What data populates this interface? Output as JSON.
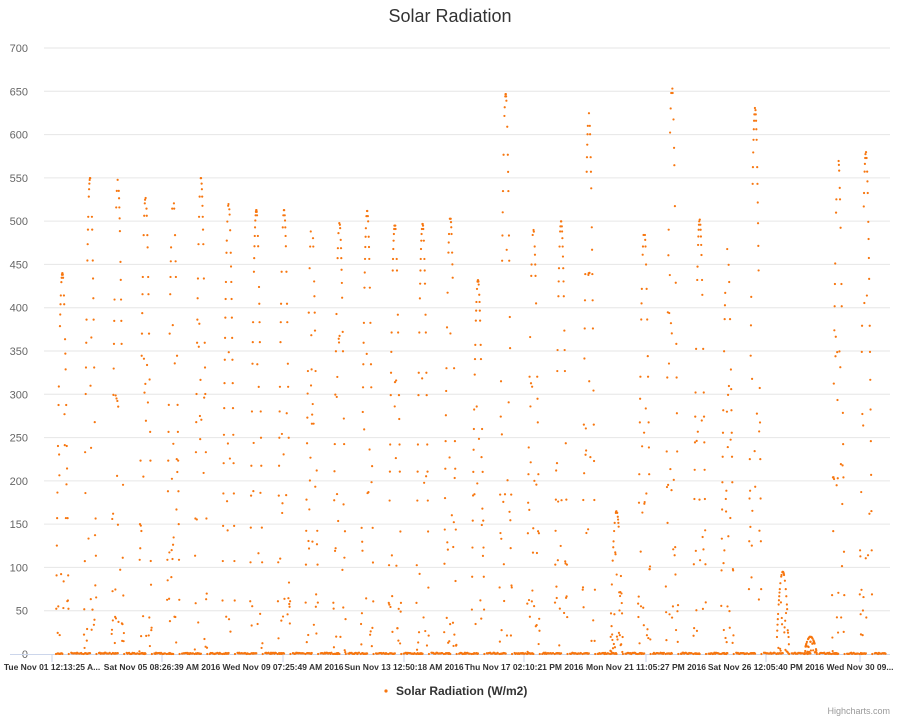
{
  "chart_data": {
    "type": "scatter",
    "title": "Solar Radiation",
    "ylim": [
      0,
      700
    ],
    "y_ticks": [
      0,
      50,
      100,
      150,
      200,
      250,
      300,
      350,
      400,
      450,
      500,
      550,
      600,
      650,
      700
    ],
    "x_tick_labels": [
      "Tue Nov 01 12:13:25 A...",
      "Sat Nov 05 08:26:39 AM 2016",
      "Wed Nov 09 07:25:49 AM 2016",
      "Sun Nov 13 12:50:18 AM 2016",
      "Thu Nov 17 02:10:21 PM 2016",
      "Mon Nov 21 11:05:27 PM 2016",
      "Sat Nov 26 12:05:40 PM 2016",
      "Wed Nov 30 09..."
    ],
    "xlim_days": [
      0,
      30.1
    ],
    "grid": true,
    "legend_position": "bottom",
    "series": [
      {
        "name": "Solar Radiation (W/m2)",
        "color": "#f7760f",
        "daily_peaks": [
          {
            "day": 1,
            "peak": 440
          },
          {
            "day": 2,
            "peak": 550
          },
          {
            "day": 3,
            "peak": 548
          },
          {
            "day": 4,
            "peak": 527
          },
          {
            "day": 5,
            "peak": 527
          },
          {
            "day": 6,
            "peak": 550
          },
          {
            "day": 7,
            "peak": 520
          },
          {
            "day": 8,
            "peak": 513
          },
          {
            "day": 9,
            "peak": 513
          },
          {
            "day": 10,
            "peak": 500
          },
          {
            "day": 11,
            "peak": 498
          },
          {
            "day": 12,
            "peak": 512
          },
          {
            "day": 13,
            "peak": 497
          },
          {
            "day": 14,
            "peak": 497
          },
          {
            "day": 15,
            "peak": 505
          },
          {
            "day": 16,
            "peak": 432
          },
          {
            "day": 17,
            "peak": 647
          },
          {
            "day": 18,
            "peak": 490
          },
          {
            "day": 19,
            "peak": 500
          },
          {
            "day": 20,
            "peak": 625
          },
          {
            "day": 21,
            "peak": 165
          },
          {
            "day": 22,
            "peak": 490
          },
          {
            "day": 23,
            "peak": 656
          },
          {
            "day": 24,
            "peak": 502
          },
          {
            "day": 25,
            "peak": 468
          },
          {
            "day": 26,
            "peak": 631
          },
          {
            "day": 27,
            "peak": 95
          },
          {
            "day": 28,
            "peak": 20
          },
          {
            "day": 29,
            "peak": 572
          },
          {
            "day": 30,
            "peak": 580
          }
        ]
      }
    ]
  },
  "credits": "Highcharts.com"
}
